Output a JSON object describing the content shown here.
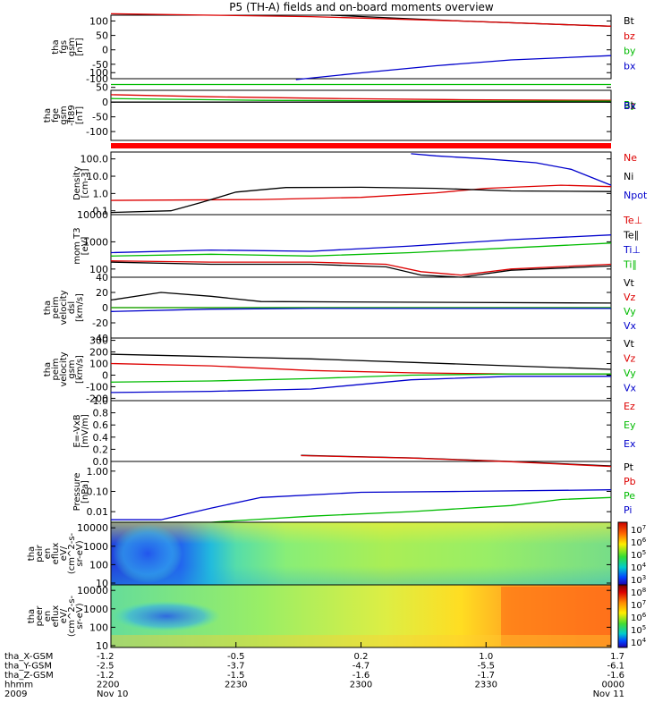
{
  "title": "P5 (TH-A) fields and on-board moments overview",
  "chart_data": {
    "type": "line",
    "panels": [
      {
        "id": "fgs",
        "ylabel": [
          "tha",
          "fgs",
          "gsm",
          "[nT]"
        ],
        "yticks": [
          "100",
          "50",
          "0",
          "-50",
          "-100"
        ],
        "legend": [
          {
            "name": "Bt",
            "color": "#000000"
          },
          {
            "name": "bz",
            "color": "#dd0000"
          },
          {
            "name": "by",
            "color": "#00bb00"
          },
          {
            "name": "bx",
            "color": "#0000cc"
          }
        ],
        "series": [
          {
            "name": "Bt",
            "x": [
              0.44,
              0.7,
              1.0
            ],
            "y": [
              120,
              100,
              82
            ]
          },
          {
            "name": "bz",
            "x": [
              0.0,
              0.4,
              0.7,
              1.0
            ],
            "y": [
              125,
              115,
              100,
              82
            ]
          },
          {
            "name": "by",
            "x": [
              0.0,
              0.5,
              1.0
            ],
            "y": [
              -120,
              -120,
              -120
            ]
          },
          {
            "name": "bx",
            "x": [
              0.37,
              0.5,
              0.65,
              0.8,
              1.0
            ],
            "y": [
              -103,
              -80,
              -55,
              -35,
              -20
            ]
          }
        ]
      },
      {
        "id": "fge",
        "ylabel": [
          "tha",
          "fge",
          "gsm",
          "-ft89",
          "[nT]"
        ],
        "yticks": [
          "100",
          "50",
          "0",
          "-50",
          "-100"
        ],
        "legend": [
          {
            "name": "Bt",
            "color": "#000000"
          },
          {
            "name": "Bz",
            "color": "#dd0000"
          },
          {
            "name": "By",
            "color": "#00bb00"
          },
          {
            "name": "Bx",
            "color": "#0000cc"
          }
        ],
        "series": [
          {
            "name": "Bz",
            "x": [
              0.0,
              0.2,
              0.45,
              0.7,
              1.0
            ],
            "y": [
              25,
              18,
              12,
              8,
              6
            ]
          },
          {
            "name": "By",
            "x": [
              0.0,
              0.3,
              0.6,
              1.0
            ],
            "y": [
              12,
              6,
              4,
              3
            ]
          },
          {
            "name": "Bt",
            "x": [
              0.0,
              0.3,
              0.6,
              1.0
            ],
            "y": [
              0,
              0,
              0,
              0
            ]
          }
        ]
      },
      {
        "id": "density",
        "ylabel": [
          "Density",
          "[cm-3]"
        ],
        "yticks": [
          "100.0",
          "10.0",
          "1.0",
          "0.1"
        ],
        "legend": [
          {
            "name": "Ne",
            "color": "#dd0000"
          },
          {
            "name": "Ni",
            "color": "#000000"
          },
          {
            "name": "Npot",
            "color": "#0000cc"
          }
        ],
        "series": [
          {
            "name": "Ne",
            "x": [
              0.0,
              0.3,
              0.5,
              0.65,
              0.75,
              0.9,
              1.0
            ],
            "y": [
              0.4,
              0.45,
              0.6,
              1.1,
              2.0,
              3.0,
              2.5
            ]
          },
          {
            "name": "Ni",
            "x": [
              0.0,
              0.12,
              0.18,
              0.25,
              0.35,
              0.5,
              0.65,
              0.8,
              1.0
            ],
            "y": [
              0.08,
              0.1,
              0.3,
              1.2,
              2.2,
              2.3,
              2.0,
              1.4,
              1.3
            ]
          },
          {
            "name": "Npot",
            "x": [
              0.6,
              0.65,
              0.75,
              0.85,
              0.92,
              1.0
            ],
            "y": [
              200,
              150,
              100,
              60,
              25,
              3
            ]
          }
        ]
      },
      {
        "id": "temperature",
        "ylabel": [
          "mom T3",
          "[eV]"
        ],
        "yticks": [
          "10000",
          "1000",
          "100"
        ],
        "legend": [
          {
            "name": "Te⊥",
            "color": "#dd0000"
          },
          {
            "name": "Te∥",
            "color": "#000000"
          },
          {
            "name": "Ti⊥",
            "color": "#0000cc"
          },
          {
            "name": "Ti∥",
            "color": "#00bb00"
          }
        ],
        "series": [
          {
            "name": "Ti⊥",
            "x": [
              0.0,
              0.2,
              0.4,
              0.6,
              0.8,
              1.0
            ],
            "y": [
              400,
              500,
              450,
              700,
              1200,
              1800
            ]
          },
          {
            "name": "Ti∥",
            "x": [
              0.0,
              0.2,
              0.4,
              0.6,
              0.8,
              1.0
            ],
            "y": [
              300,
              350,
              300,
              400,
              600,
              900
            ]
          },
          {
            "name": "Te⊥",
            "x": [
              0.0,
              0.2,
              0.4,
              0.55,
              0.62,
              0.7,
              0.8,
              1.0
            ],
            "y": [
              200,
              180,
              180,
              150,
              80,
              60,
              100,
              150
            ]
          },
          {
            "name": "Te∥",
            "x": [
              0.0,
              0.2,
              0.4,
              0.55,
              0.62,
              0.7,
              0.8,
              1.0
            ],
            "y": [
              180,
              150,
              150,
              120,
              60,
              50,
              90,
              130
            ]
          }
        ]
      },
      {
        "id": "peim_velocity",
        "ylabel": [
          "tha",
          "peim",
          "velocity",
          "dsl",
          "[km/s]"
        ],
        "yticks": [
          "40",
          "20",
          "0",
          "-20",
          "-40"
        ],
        "legend": [
          {
            "name": "Vt",
            "color": "#000000"
          },
          {
            "name": "Vz",
            "color": "#dd0000"
          },
          {
            "name": "Vy",
            "color": "#00bb00"
          },
          {
            "name": "Vx",
            "color": "#0000cc"
          }
        ],
        "series": [
          {
            "name": "Vt",
            "x": [
              0.0,
              0.1,
              0.2,
              0.3,
              1.0
            ],
            "y": [
              10,
              20,
              15,
              8,
              6
            ]
          },
          {
            "name": "Vz",
            "x": [
              0.0,
              0.2,
              0.4,
              1.0
            ],
            "y": [
              0,
              0,
              0,
              0
            ]
          },
          {
            "name": "Vy",
            "x": [
              0.0,
              0.2,
              0.4,
              1.0
            ],
            "y": [
              0,
              0,
              0,
              0
            ]
          },
          {
            "name": "Vx",
            "x": [
              0.0,
              0.2,
              0.4,
              1.0
            ],
            "y": [
              -5,
              -2,
              -1,
              -1
            ]
          }
        ]
      },
      {
        "id": "peim_velocity_gsm",
        "ylabel": [
          "tha",
          "peim",
          "velocity",
          "gsm",
          "[km/s]"
        ],
        "yticks": [
          "300",
          "200",
          "100",
          "0",
          "-100",
          "-200"
        ],
        "legend": [
          {
            "name": "Vt",
            "color": "#000000"
          },
          {
            "name": "Vz",
            "color": "#dd0000"
          },
          {
            "name": "Vy",
            "color": "#00bb00"
          },
          {
            "name": "Vx",
            "color": "#0000cc"
          }
        ],
        "series": [
          {
            "name": "Vt",
            "x": [
              0.0,
              0.2,
              0.4,
              0.6,
              0.8,
              1.0
            ],
            "y": [
              180,
              160,
              140,
              110,
              80,
              50
            ]
          },
          {
            "name": "Vz",
            "x": [
              0.0,
              0.2,
              0.4,
              0.6,
              0.8,
              1.0
            ],
            "y": [
              100,
              80,
              40,
              20,
              10,
              10
            ]
          },
          {
            "name": "Vy",
            "x": [
              0.0,
              0.2,
              0.4,
              0.6,
              0.8,
              1.0
            ],
            "y": [
              -60,
              -50,
              -30,
              0,
              10,
              10
            ]
          },
          {
            "name": "Vx",
            "x": [
              0.0,
              0.2,
              0.4,
              0.6,
              0.8,
              1.0
            ],
            "y": [
              -150,
              -140,
              -120,
              -40,
              -10,
              -10
            ]
          }
        ]
      },
      {
        "id": "efield",
        "ylabel": [
          "E=-VxB",
          "[mV/m]"
        ],
        "yticks": [
          "1.0",
          "0.8",
          "0.6",
          "0.4",
          "0.2",
          "0.0"
        ],
        "legend": [
          {
            "name": "Ez",
            "color": "#dd0000"
          },
          {
            "name": "Ey",
            "color": "#00bb00"
          },
          {
            "name": "Ex",
            "color": "#0000cc"
          }
        ],
        "series": []
      },
      {
        "id": "pressure",
        "ylabel": [
          "Pressure",
          "[nPa]"
        ],
        "yticks": [
          "1.00",
          "0.10",
          "0.01"
        ],
        "legend": [
          {
            "name": "Pt",
            "color": "#000000"
          },
          {
            "name": "Pb",
            "color": "#dd0000"
          },
          {
            "name": "Pe",
            "color": "#00bb00"
          },
          {
            "name": "Pi",
            "color": "#0000cc"
          }
        ],
        "series": [
          {
            "name": "Pt",
            "x": [
              0.38,
              0.6,
              0.8,
              1.0
            ],
            "y": [
              6.0,
              4.5,
              3.0,
              1.8
            ]
          },
          {
            "name": "Pb",
            "x": [
              0.38,
              0.6,
              0.8,
              1.0
            ],
            "y": [
              5.8,
              4.4,
              2.9,
              1.7
            ]
          },
          {
            "name": "Pi",
            "x": [
              0.0,
              0.1,
              0.2,
              0.3,
              0.5,
              0.7,
              1.0
            ],
            "y": [
              0.004,
              0.004,
              0.015,
              0.05,
              0.09,
              0.1,
              0.12
            ]
          },
          {
            "name": "Pe",
            "x": [
              0.0,
              0.2,
              0.4,
              0.6,
              0.8,
              0.9,
              1.0
            ],
            "y": [
              0.003,
              0.003,
              0.006,
              0.01,
              0.02,
              0.04,
              0.05
            ]
          }
        ]
      },
      {
        "id": "peir_spec",
        "type": "heatmap",
        "ylabel": [
          "tha",
          "peir",
          "en",
          "eflux",
          "eV/",
          "(cm^2-s-",
          "sr-eV)"
        ],
        "yticks": [
          "10000",
          "1000",
          "100",
          "10"
        ],
        "colorbar_ticks": [
          "10^7",
          "10^6",
          "10^5",
          "10^4",
          "10^3"
        ]
      },
      {
        "id": "peer_spec",
        "type": "heatmap",
        "ylabel": [
          "tha",
          "peer",
          "en",
          "eflux",
          "eV/",
          "(cm^2-s-",
          "sr-eV)"
        ],
        "yticks": [
          "10000",
          "1000",
          "100",
          "10"
        ],
        "colorbar_ticks": [
          "10^8",
          "10^7",
          "10^6",
          "10^5",
          "10^4"
        ]
      }
    ],
    "x_axis": {
      "rows": [
        {
          "label": "tha_X-GSM",
          "values": [
            "-1.2",
            "-0.5",
            "0.2",
            "1.0",
            "1.7"
          ]
        },
        {
          "label": "tha_Y-GSM",
          "values": [
            "-2.5",
            "-3.7",
            "-4.7",
            "-5.5",
            "-6.1"
          ]
        },
        {
          "label": "tha_Z-GSM",
          "values": [
            "-1.2",
            "-1.5",
            "-1.6",
            "-1.7",
            "-1.6"
          ]
        },
        {
          "label": "hhmm",
          "values": [
            "2200",
            "2230",
            "2300",
            "2330",
            "0000"
          ]
        },
        {
          "label": "2009",
          "values": [
            "Nov 10",
            "",
            "",
            "",
            "Nov 11"
          ]
        }
      ]
    }
  }
}
